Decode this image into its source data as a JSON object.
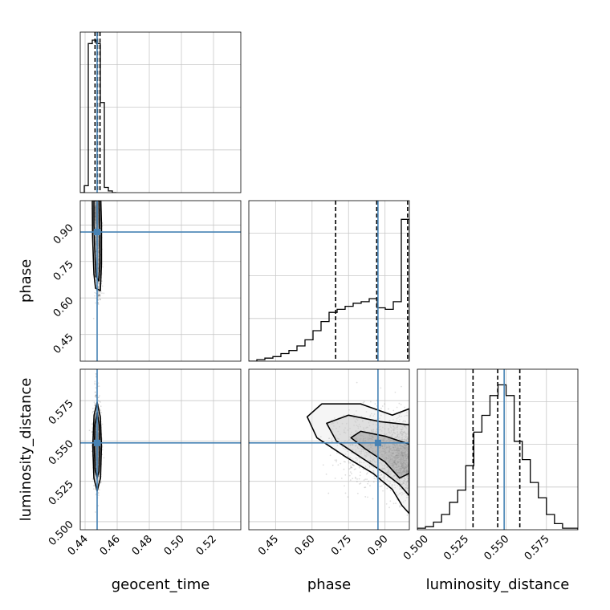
{
  "chart_data": {
    "type": "corner",
    "parameters": [
      "geocent_time",
      "phase",
      "luminosity_distance"
    ],
    "axis_labels": {
      "geocent_time": "geocent_time",
      "phase": "phase",
      "luminosity_distance": "luminosity_distance"
    },
    "ranges": {
      "geocent_time": [
        0.437,
        0.537
      ],
      "phase": [
        0.34,
        1.0
      ],
      "luminosity_distance": [
        0.495,
        0.5945
      ]
    },
    "ticks": {
      "geocent_time": {
        "values": [
          0.44,
          0.46,
          0.48,
          0.5,
          0.52
        ],
        "labels": [
          "0.44",
          "0.46",
          "0.48",
          "0.50",
          "0.52"
        ]
      },
      "phase": {
        "values": [
          0.45,
          0.6,
          0.75,
          0.9
        ],
        "labels": [
          "0.45",
          "0.60",
          "0.75",
          "0.90"
        ]
      },
      "luminosity_distance": {
        "values": [
          0.5,
          0.525,
          0.55,
          0.575
        ],
        "labels": [
          "0.500",
          "0.525",
          "0.550",
          "0.575"
        ]
      }
    },
    "truths": {
      "geocent_time": 0.4475,
      "phase": 0.871,
      "luminosity_distance": 0.5488
    },
    "truth_color": "#4682b4",
    "quantiles": {
      "geocent_time": [
        0.4462,
        0.4477,
        0.4493
      ],
      "phase": [
        0.697,
        0.866,
        0.993
      ],
      "luminosity_distance": [
        0.5295,
        0.5448,
        0.5585
      ]
    },
    "histograms": {
      "geocent_time": {
        "edges": [
          0.437,
          0.4395,
          0.442,
          0.4445,
          0.447,
          0.4495,
          0.452,
          0.4545,
          0.457,
          0.4595
        ],
        "counts": [
          0,
          0.04,
          0.86,
          0.88,
          0.86,
          0.52,
          0.03,
          0.01,
          0
        ]
      },
      "phase": {
        "edges": [
          0.34,
          0.373,
          0.406,
          0.439,
          0.472,
          0.505,
          0.538,
          0.571,
          0.604,
          0.637,
          0.67,
          0.703,
          0.736,
          0.769,
          0.802,
          0.835,
          0.868,
          0.901,
          0.934,
          0.967,
          1.0
        ],
        "counts": [
          0,
          0.01,
          0.02,
          0.03,
          0.05,
          0.07,
          0.1,
          0.14,
          0.2,
          0.26,
          0.32,
          0.34,
          0.36,
          0.38,
          0.39,
          0.41,
          0.35,
          0.34,
          0.39,
          0.93
        ],
        "max": 1.0
      },
      "luminosity_distance": {
        "edges": [
          0.495,
          0.5,
          0.505,
          0.51,
          0.515,
          0.52,
          0.525,
          0.53,
          0.535,
          0.54,
          0.545,
          0.55,
          0.555,
          0.56,
          0.565,
          0.57,
          0.575,
          0.58,
          0.585,
          0.59,
          0.5945
        ],
        "counts": [
          0.01,
          0.02,
          0.05,
          0.1,
          0.18,
          0.26,
          0.42,
          0.64,
          0.75,
          0.88,
          0.95,
          0.88,
          0.58,
          0.46,
          0.31,
          0.21,
          0.1,
          0.04,
          0.01,
          0.01
        ],
        "max": 1.0
      }
    },
    "pair_panels": [
      {
        "x": "geocent_time",
        "y": "phase",
        "density": [
          {
            "x": 0.4475,
            "y": 0.955,
            "sx": 0.0009,
            "sy": 0.035,
            "w": 1.0
          },
          {
            "x": 0.4475,
            "y": 0.86,
            "sx": 0.0008,
            "sy": 0.07,
            "w": 0.55
          },
          {
            "x": 0.4485,
            "y": 0.7,
            "sx": 0.001,
            "sy": 0.06,
            "w": 0.25
          }
        ],
        "contours": [
          [
            [
              0.4455,
              1.0
            ],
            [
              0.4455,
              0.9
            ],
            [
              0.446,
              0.8
            ],
            [
              0.4468,
              0.69
            ],
            [
              0.4485,
              0.67
            ],
            [
              0.4492,
              0.74
            ],
            [
              0.4492,
              0.86
            ],
            [
              0.4488,
              1.0
            ]
          ],
          [
            [
              0.4445,
              1.0
            ],
            [
              0.4447,
              0.85
            ],
            [
              0.4455,
              0.7
            ],
            [
              0.4465,
              0.64
            ],
            [
              0.4495,
              0.63
            ],
            [
              0.4502,
              0.74
            ],
            [
              0.4502,
              0.9
            ],
            [
              0.4498,
              1.0
            ]
          ]
        ]
      },
      {
        "x": "geocent_time",
        "y": "luminosity_distance",
        "density": [
          {
            "x": 0.4472,
            "y": 0.546,
            "sx": 0.0009,
            "sy": 0.008,
            "w": 1.0
          },
          {
            "x": 0.4475,
            "y": 0.55,
            "sx": 0.0012,
            "sy": 0.015,
            "w": 0.4
          }
        ],
        "contours": [
          [
            [
              0.4475,
              0.568
            ],
            [
              0.4488,
              0.56
            ],
            [
              0.4492,
              0.545
            ],
            [
              0.4486,
              0.531
            ],
            [
              0.4475,
              0.527
            ],
            [
              0.4463,
              0.532
            ],
            [
              0.4457,
              0.546
            ],
            [
              0.4462,
              0.56
            ]
          ],
          [
            [
              0.4475,
              0.574
            ],
            [
              0.4495,
              0.565
            ],
            [
              0.4502,
              0.547
            ],
            [
              0.4496,
              0.527
            ],
            [
              0.4475,
              0.519
            ],
            [
              0.4455,
              0.527
            ],
            [
              0.4448,
              0.547
            ],
            [
              0.4456,
              0.566
            ]
          ]
        ]
      },
      {
        "x": "phase",
        "y": "luminosity_distance",
        "density": [
          {
            "x": 0.99,
            "y": 0.538,
            "sx": 0.045,
            "sy": 0.01,
            "w": 1.0
          },
          {
            "x": 0.85,
            "y": 0.546,
            "sx": 0.09,
            "sy": 0.012,
            "w": 0.45
          }
        ],
        "contours": [
          [
            [
              0.76,
              0.552
            ],
            [
              0.8,
              0.556
            ],
            [
              0.9,
              0.553
            ],
            [
              1.0,
              0.548
            ],
            [
              1.0,
              0.53
            ],
            [
              0.96,
              0.527
            ],
            [
              0.9,
              0.537
            ],
            [
              0.82,
              0.545
            ]
          ],
          [
            [
              0.66,
              0.561
            ],
            [
              0.75,
              0.566
            ],
            [
              0.88,
              0.562
            ],
            [
              1.0,
              0.56
            ],
            [
              1.0,
              0.516
            ],
            [
              0.96,
              0.523
            ],
            [
              0.9,
              0.53
            ],
            [
              0.8,
              0.54
            ],
            [
              0.7,
              0.55
            ]
          ],
          [
            [
              0.58,
              0.565
            ],
            [
              0.64,
              0.573
            ],
            [
              0.8,
              0.573
            ],
            [
              0.93,
              0.566
            ],
            [
              1.0,
              0.57
            ],
            [
              1.0,
              0.505
            ],
            [
              0.97,
              0.51
            ],
            [
              0.93,
              0.52
            ],
            [
              0.85,
              0.53
            ],
            [
              0.74,
              0.54
            ],
            [
              0.62,
              0.552
            ]
          ]
        ]
      }
    ]
  }
}
